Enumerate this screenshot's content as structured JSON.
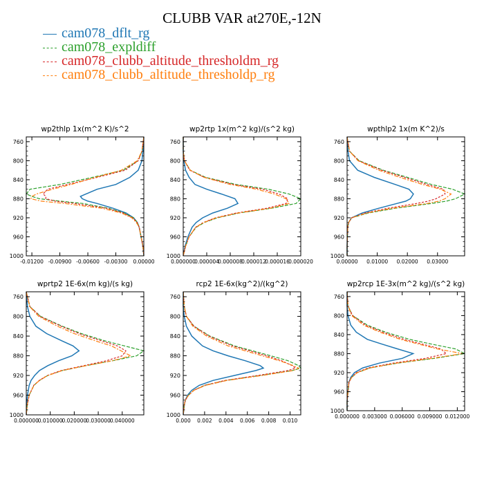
{
  "figure": {
    "title": "CLUBB VAR at270E,-12N"
  },
  "legend": [
    {
      "name": "cam078_dflt_rg",
      "color": "#1f77b4"
    },
    {
      "name": "cam078_expldiff",
      "color": "#2ca02c"
    },
    {
      "name": "cam078_clubb_altitude_thresholdm_rg",
      "color": "#d62728"
    },
    {
      "name": "cam078_clubb_altitude_thresholdp_rg",
      "color": "#ff7f0e"
    }
  ],
  "chart_data": [
    {
      "type": "line",
      "title": "wp2thlp   1x(m^2 K)/s^2",
      "xlim": [
        -0.0126,
        0.0
      ],
      "ylim": [
        1000,
        750
      ],
      "xticks": [
        -0.012,
        -0.009,
        -0.006,
        -0.003,
        0.0
      ],
      "xtick_labels": [
        "-0.01200",
        "-0.00900",
        "-0.00600",
        "-0.00300",
        "0.00000"
      ],
      "yticks": [
        760,
        800,
        840,
        880,
        920,
        960,
        1000
      ],
      "y": [
        750,
        780,
        800,
        820,
        835,
        850,
        860,
        870,
        875,
        880,
        885,
        890,
        900,
        910,
        920,
        930,
        940,
        960,
        980,
        1000
      ],
      "series": [
        {
          "name": "cam078_dflt_rg",
          "values": [
            0,
            -0.0001,
            -0.0002,
            -0.0006,
            -0.0015,
            -0.003,
            -0.005,
            -0.0062,
            -0.0068,
            -0.0066,
            -0.006,
            -0.005,
            -0.0033,
            -0.0019,
            -0.0011,
            -0.0007,
            -0.0005,
            -0.0003,
            -0.0001,
            0
          ]
        },
        {
          "name": "cam078_expldiff",
          "values": [
            0,
            -0.0002,
            -0.0006,
            -0.0022,
            -0.0055,
            -0.009,
            -0.0122,
            -0.0126,
            -0.012,
            -0.0112,
            -0.009,
            -0.0065,
            -0.0038,
            -0.0021,
            -0.0011,
            -0.0007,
            -0.0005,
            -0.0003,
            -0.0001,
            0
          ]
        },
        {
          "name": "cam078_clubb_altitude_thresholdm_rg",
          "values": [
            0,
            -0.0002,
            -0.0006,
            -0.002,
            -0.005,
            -0.0082,
            -0.0103,
            -0.0108,
            -0.0105,
            -0.0105,
            -0.0095,
            -0.0074,
            -0.004,
            -0.0022,
            -0.0012,
            -0.0007,
            -0.0005,
            -0.0003,
            -0.0001,
            0
          ]
        },
        {
          "name": "cam078_clubb_altitude_thresholdp_rg",
          "values": [
            0,
            -0.0002,
            -0.0007,
            -0.0024,
            -0.0052,
            -0.0078,
            -0.0098,
            -0.0115,
            -0.012,
            -0.0121,
            -0.011,
            -0.0085,
            -0.0045,
            -0.0024,
            -0.0013,
            -0.0008,
            -0.0005,
            -0.0003,
            -0.0001,
            0
          ]
        }
      ]
    },
    {
      "type": "line",
      "title": "wp2rtp   1x(m^2 kg)/(s^2 kg)",
      "xlim": [
        0.0,
        2e-05
      ],
      "ylim": [
        1000,
        750
      ],
      "xticks": [
        0.0,
        4e-06,
        8e-06,
        1.2e-05,
        1.6e-05,
        2e-05
      ],
      "xtick_labels": [
        "0.000000",
        "0.000004",
        "0.000008",
        "0.000012",
        "0.000016",
        "0.000020"
      ],
      "yticks": [
        760,
        800,
        840,
        880,
        920,
        960,
        1000
      ],
      "y": [
        750,
        780,
        800,
        820,
        835,
        850,
        860,
        870,
        880,
        890,
        900,
        910,
        920,
        930,
        940,
        960,
        980,
        1000
      ],
      "series": [
        {
          "name": "cam078_dflt_rg",
          "values": [
            0,
            0,
            1e-07,
            4e-07,
            1e-06,
            2e-06,
            4e-06,
            6.5e-06,
            8.8e-06,
            9.3e-06,
            7.5e-06,
            5e-06,
            3.3e-06,
            2.2e-06,
            1.5e-06,
            8e-07,
            3e-07,
            0
          ]
        },
        {
          "name": "cam078_expldiff",
          "values": [
            0,
            0,
            2e-07,
            1.2e-06,
            3.8e-06,
            9e-06,
            1.45e-05,
            1.8e-05,
            2e-05,
            1.92e-05,
            1.5e-05,
            9.5e-06,
            5.8e-06,
            3.6e-06,
            2.2e-06,
            1e-06,
            4e-07,
            0
          ]
        },
        {
          "name": "cam078_clubb_altitude_thresholdm_rg",
          "values": [
            0,
            0,
            2e-07,
            1.1e-06,
            3.6e-06,
            8.5e-06,
            1.35e-05,
            1.63e-05,
            1.78e-05,
            1.75e-05,
            1.42e-05,
            9e-06,
            5.5e-06,
            3.4e-06,
            2.1e-06,
            1e-06,
            4e-07,
            0
          ]
        },
        {
          "name": "cam078_clubb_altitude_thresholdp_rg",
          "values": [
            0,
            0,
            2e-07,
            1.2e-06,
            3.5e-06,
            8e-06,
            1.25e-05,
            1.55e-05,
            1.75e-05,
            1.8e-05,
            1.48e-05,
            9.3e-06,
            5.6e-06,
            3.5e-06,
            2.1e-06,
            1e-06,
            4e-07,
            0
          ]
        }
      ]
    },
    {
      "type": "line",
      "title": "wpthlp2   1x(m K^2)/s",
      "xlim": [
        0.0,
        0.039
      ],
      "ylim": [
        1000,
        750
      ],
      "xticks": [
        0.0,
        0.01,
        0.02,
        0.03
      ],
      "xtick_labels": [
        "0.00000",
        "0.01000",
        "0.02000",
        "0.03000"
      ],
      "yticks": [
        760,
        800,
        840,
        880,
        920,
        960,
        1000
      ],
      "y": [
        750,
        780,
        800,
        820,
        835,
        850,
        860,
        870,
        880,
        885,
        890,
        900,
        910,
        920,
        930,
        940,
        960,
        980,
        1000
      ],
      "series": [
        {
          "name": "cam078_dflt_rg",
          "values": [
            0,
            0.0003,
            0.0008,
            0.0035,
            0.009,
            0.016,
            0.0205,
            0.022,
            0.021,
            0.0195,
            0.0165,
            0.0105,
            0.005,
            0.0015,
            0.0005,
            0.0002,
            0.0001,
            0,
            0
          ]
        },
        {
          "name": "cam078_expldiff",
          "values": [
            0,
            0.0008,
            0.004,
            0.012,
            0.02,
            0.028,
            0.035,
            0.039,
            0.036,
            0.033,
            0.028,
            0.016,
            0.007,
            0.0015,
            0.0005,
            0.0002,
            0.0001,
            0,
            0
          ]
        },
        {
          "name": "cam078_clubb_altitude_thresholdm_rg",
          "values": [
            0,
            0.0008,
            0.0038,
            0.0115,
            0.019,
            0.0265,
            0.032,
            0.0325,
            0.0295,
            0.027,
            0.023,
            0.0135,
            0.006,
            0.0015,
            0.0005,
            0.0002,
            0.0001,
            0,
            0
          ]
        },
        {
          "name": "cam078_clubb_altitude_thresholdp_rg",
          "values": [
            0,
            0.0008,
            0.0036,
            0.0105,
            0.0175,
            0.025,
            0.031,
            0.0345,
            0.0325,
            0.0305,
            0.0265,
            0.015,
            0.0065,
            0.0015,
            0.0005,
            0.0002,
            0.0001,
            0,
            0
          ]
        }
      ]
    },
    {
      "type": "line",
      "title": "wprtp2   1E-6x(m kg)/(s kg)",
      "xlim": [
        0.0,
        0.049
      ],
      "ylim": [
        1000,
        750
      ],
      "xticks": [
        0.0,
        0.01,
        0.02,
        0.03,
        0.04
      ],
      "xtick_labels": [
        "0.000000",
        "0.010000",
        "0.020000",
        "0.030000",
        "0.040000"
      ],
      "yticks": [
        760,
        800,
        840,
        880,
        920,
        960,
        1000
      ],
      "y": [
        750,
        780,
        800,
        820,
        835,
        850,
        860,
        870,
        880,
        890,
        900,
        910,
        920,
        930,
        940,
        960,
        980,
        1000
      ],
      "series": [
        {
          "name": "cam078_dflt_rg",
          "values": [
            0,
            0.0005,
            0.0015,
            0.004,
            0.0085,
            0.015,
            0.0195,
            0.022,
            0.019,
            0.0135,
            0.009,
            0.0055,
            0.0035,
            0.002,
            0.0012,
            0.0005,
            0.0002,
            0
          ]
        },
        {
          "name": "cam078_expldiff",
          "values": [
            0,
            0.0015,
            0.006,
            0.015,
            0.023,
            0.033,
            0.041,
            0.049,
            0.046,
            0.036,
            0.025,
            0.015,
            0.009,
            0.0055,
            0.0032,
            0.0012,
            0.0004,
            0
          ]
        },
        {
          "name": "cam078_clubb_altitude_thresholdm_rg",
          "values": [
            0,
            0.0015,
            0.0058,
            0.0145,
            0.022,
            0.0315,
            0.038,
            0.0415,
            0.04,
            0.0335,
            0.024,
            0.0145,
            0.0088,
            0.0054,
            0.0031,
            0.0012,
            0.0004,
            0
          ]
        },
        {
          "name": "cam078_clubb_altitude_thresholdp_rg",
          "values": [
            0,
            0.0014,
            0.0052,
            0.013,
            0.02,
            0.029,
            0.0355,
            0.0395,
            0.0435,
            0.036,
            0.025,
            0.015,
            0.009,
            0.0055,
            0.0032,
            0.0012,
            0.0004,
            0
          ]
        }
      ]
    },
    {
      "type": "line",
      "title": "rcp2   1E-6x(kg^2)/(kg^2)",
      "xlim": [
        0.0,
        0.011
      ],
      "ylim": [
        1000,
        750
      ],
      "xticks": [
        0.0,
        0.002,
        0.004,
        0.006,
        0.008,
        0.01
      ],
      "xtick_labels": [
        "0.000",
        "0.002",
        "0.004",
        "0.006",
        "0.008",
        "0.010"
      ],
      "yticks": [
        760,
        800,
        840,
        880,
        920,
        960,
        1000
      ],
      "y": [
        750,
        780,
        800,
        820,
        840,
        860,
        870,
        880,
        890,
        900,
        905,
        910,
        920,
        930,
        940,
        950,
        960,
        970,
        980,
        1000
      ],
      "series": [
        {
          "name": "cam078_dflt_rg",
          "values": [
            0,
            0,
            0.0001,
            0.0003,
            0.0008,
            0.0018,
            0.0028,
            0.0042,
            0.0058,
            0.0072,
            0.0075,
            0.0068,
            0.0048,
            0.0028,
            0.0015,
            0.0008,
            0.0004,
            0.0002,
            0.0001,
            0
          ]
        },
        {
          "name": "cam078_expldiff",
          "values": [
            0,
            0.0001,
            0.0003,
            0.001,
            0.0025,
            0.0048,
            0.0065,
            0.0082,
            0.0098,
            0.0108,
            0.011,
            0.0102,
            0.0072,
            0.004,
            0.002,
            0.001,
            0.0005,
            0.0002,
            0.0001,
            0
          ]
        },
        {
          "name": "cam078_clubb_altitude_thresholdm_rg",
          "values": [
            0,
            0.0001,
            0.0003,
            0.001,
            0.0024,
            0.0046,
            0.0062,
            0.0078,
            0.0092,
            0.0102,
            0.0105,
            0.0098,
            0.007,
            0.0039,
            0.002,
            0.001,
            0.0005,
            0.0002,
            0.0001,
            0
          ]
        },
        {
          "name": "cam078_clubb_altitude_thresholdp_rg",
          "values": [
            0,
            0.0001,
            0.0003,
            0.0009,
            0.0022,
            0.0042,
            0.0058,
            0.0074,
            0.009,
            0.0103,
            0.0108,
            0.0103,
            0.0074,
            0.0041,
            0.0021,
            0.001,
            0.0005,
            0.0002,
            0.0001,
            0
          ]
        }
      ]
    },
    {
      "type": "line",
      "title": "wp2rcp   1E-3x(m^2 kg)/(s^2 kg)",
      "xlim": [
        0.0,
        0.0128
      ],
      "ylim": [
        1000,
        750
      ],
      "xticks": [
        0.0,
        0.003,
        0.006,
        0.009,
        0.012
      ],
      "xtick_labels": [
        "0.000000",
        "0.003000",
        "0.006000",
        "0.009000",
        "0.012000"
      ],
      "yticks": [
        760,
        800,
        840,
        880,
        920,
        960,
        1000
      ],
      "y": [
        750,
        780,
        800,
        820,
        835,
        850,
        860,
        870,
        880,
        890,
        900,
        910,
        920,
        930,
        940,
        960,
        980,
        1000
      ],
      "series": [
        {
          "name": "cam078_dflt_rg",
          "values": [
            0,
            0,
            0.0001,
            0.0004,
            0.001,
            0.0022,
            0.0038,
            0.0055,
            0.0072,
            0.006,
            0.0035,
            0.0017,
            0.0008,
            0.0004,
            0.0002,
            0.0001,
            0,
            0
          ]
        },
        {
          "name": "cam078_expldiff",
          "values": [
            0,
            0.0001,
            0.0006,
            0.0022,
            0.0042,
            0.0068,
            0.0092,
            0.0118,
            0.0128,
            0.0095,
            0.0055,
            0.0025,
            0.0011,
            0.0005,
            0.0002,
            0.0001,
            0,
            0
          ]
        },
        {
          "name": "cam078_clubb_altitude_thresholdm_rg",
          "values": [
            0,
            0.0001,
            0.0006,
            0.002,
            0.0039,
            0.0062,
            0.0082,
            0.0102,
            0.0108,
            0.0085,
            0.005,
            0.0023,
            0.001,
            0.0005,
            0.0002,
            0.0001,
            0,
            0
          ]
        },
        {
          "name": "cam078_clubb_altitude_thresholdp_rg",
          "values": [
            0,
            0.0001,
            0.0005,
            0.0018,
            0.0036,
            0.0058,
            0.0078,
            0.0098,
            0.0126,
            0.0092,
            0.0054,
            0.0025,
            0.0011,
            0.0005,
            0.0002,
            0.0001,
            0,
            0
          ]
        }
      ]
    }
  ]
}
